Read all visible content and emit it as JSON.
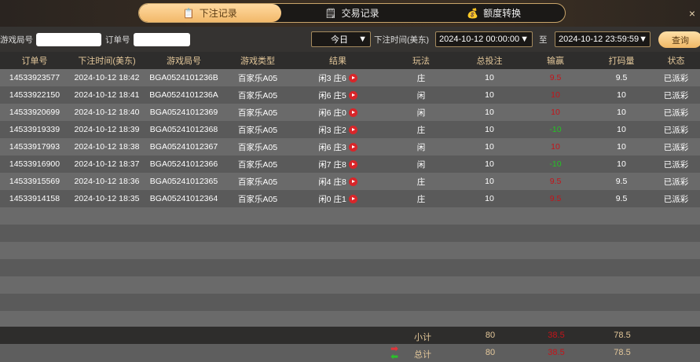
{
  "tabs": [
    {
      "label": "下注记录",
      "icon": "clipboard-icon",
      "active": true
    },
    {
      "label": "交易记录",
      "icon": "document-icon"
    },
    {
      "label": "额度转换",
      "icon": "coins-icon"
    }
  ],
  "close": "×",
  "filter": {
    "game_no_label": "游戏局号",
    "game_no_value": "",
    "order_no_label": "订单号",
    "order_no_value": "",
    "period": "今日",
    "time_label": "下注时间(美东)",
    "start": "2024-10-12 00:00:00",
    "to": "至",
    "end": "2024-10-12 23:59:59",
    "query": "查询"
  },
  "columns": [
    "订单号",
    "下注时间(美东)",
    "游戏局号",
    "游戏类型",
    "结果",
    "玩法",
    "总投注",
    "输赢",
    "打码量",
    "状态"
  ],
  "rows": [
    [
      "14533923577",
      "2024-10-12 18:42",
      "BGA0524101236B",
      "百家乐A05",
      "闲3 庄6",
      "庄",
      "10",
      "9.5",
      "9.5",
      "已派彩"
    ],
    [
      "14533922150",
      "2024-10-12 18:41",
      "BGA0524101236A",
      "百家乐A05",
      "闲6 庄5",
      "闲",
      "10",
      "10",
      "10",
      "已派彩"
    ],
    [
      "14533920699",
      "2024-10-12 18:40",
      "BGA05241012369",
      "百家乐A05",
      "闲6 庄0",
      "闲",
      "10",
      "10",
      "10",
      "已派彩"
    ],
    [
      "14533919339",
      "2024-10-12 18:39",
      "BGA05241012368",
      "百家乐A05",
      "闲3 庄2",
      "庄",
      "10",
      "-10",
      "10",
      "已派彩"
    ],
    [
      "14533917993",
      "2024-10-12 18:38",
      "BGA05241012367",
      "百家乐A05",
      "闲6 庄3",
      "闲",
      "10",
      "10",
      "10",
      "已派彩"
    ],
    [
      "14533916900",
      "2024-10-12 18:37",
      "BGA05241012366",
      "百家乐A05",
      "闲7 庄8",
      "闲",
      "10",
      "-10",
      "10",
      "已派彩"
    ],
    [
      "14533915569",
      "2024-10-12 18:36",
      "BGA05241012365",
      "百家乐A05",
      "闲4 庄8",
      "庄",
      "10",
      "9.5",
      "9.5",
      "已派彩"
    ],
    [
      "14533914158",
      "2024-10-12 18:35",
      "BGA05241012364",
      "百家乐A05",
      "闲0 庄1",
      "庄",
      "10",
      "9.5",
      "9.5",
      "已派彩"
    ]
  ],
  "subtotal": {
    "label": "小计",
    "bet": "80",
    "win": "38.5",
    "valid": "78.5"
  },
  "total": {
    "label": "总计",
    "bet": "80",
    "win": "38.5",
    "valid": "78.5"
  },
  "colors": {
    "win": "#c4141a",
    "loss": "#24c324",
    "accent": "#f2b96a"
  }
}
